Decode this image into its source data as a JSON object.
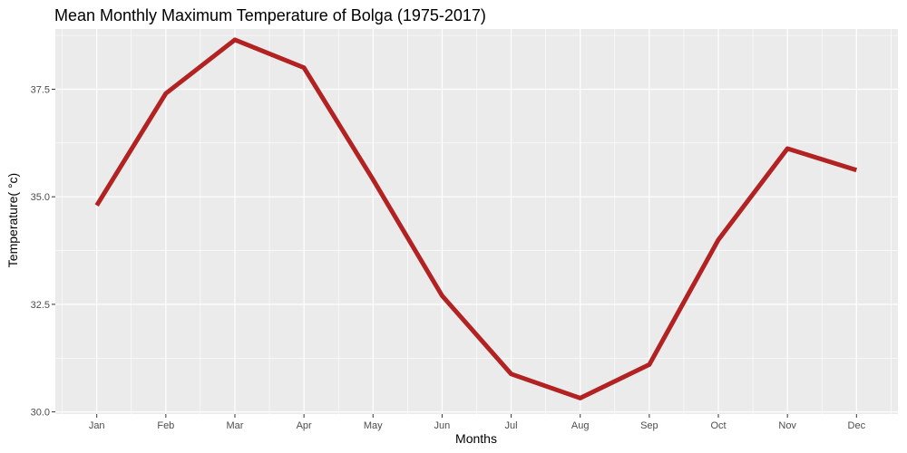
{
  "chart_data": {
    "type": "line",
    "title": "Mean Monthly Maximum Temperature  of Bolga (1975-2017)",
    "xlabel": "Months",
    "ylabel": "Temperature( °c)",
    "categories": [
      "Jan",
      "Feb",
      "Mar",
      "Apr",
      "May",
      "Jun",
      "Jul",
      "Aug",
      "Sep",
      "Oct",
      "Nov",
      "Dec"
    ],
    "series": [
      {
        "values": [
          34.8,
          37.4,
          38.65,
          38.0,
          35.4,
          32.7,
          30.88,
          30.32,
          31.1,
          34.0,
          36.12,
          35.62
        ],
        "color": "#b22222"
      }
    ],
    "ylim": [
      29.95,
      38.9
    ],
    "yticks": [
      30.0,
      32.5,
      35.0,
      37.5
    ],
    "ytick_labels": [
      "30.0",
      "32.5",
      "35.0",
      "37.5"
    ],
    "grid": true,
    "panel_background": "#ebebeb",
    "grid_color": "#ffffff"
  }
}
